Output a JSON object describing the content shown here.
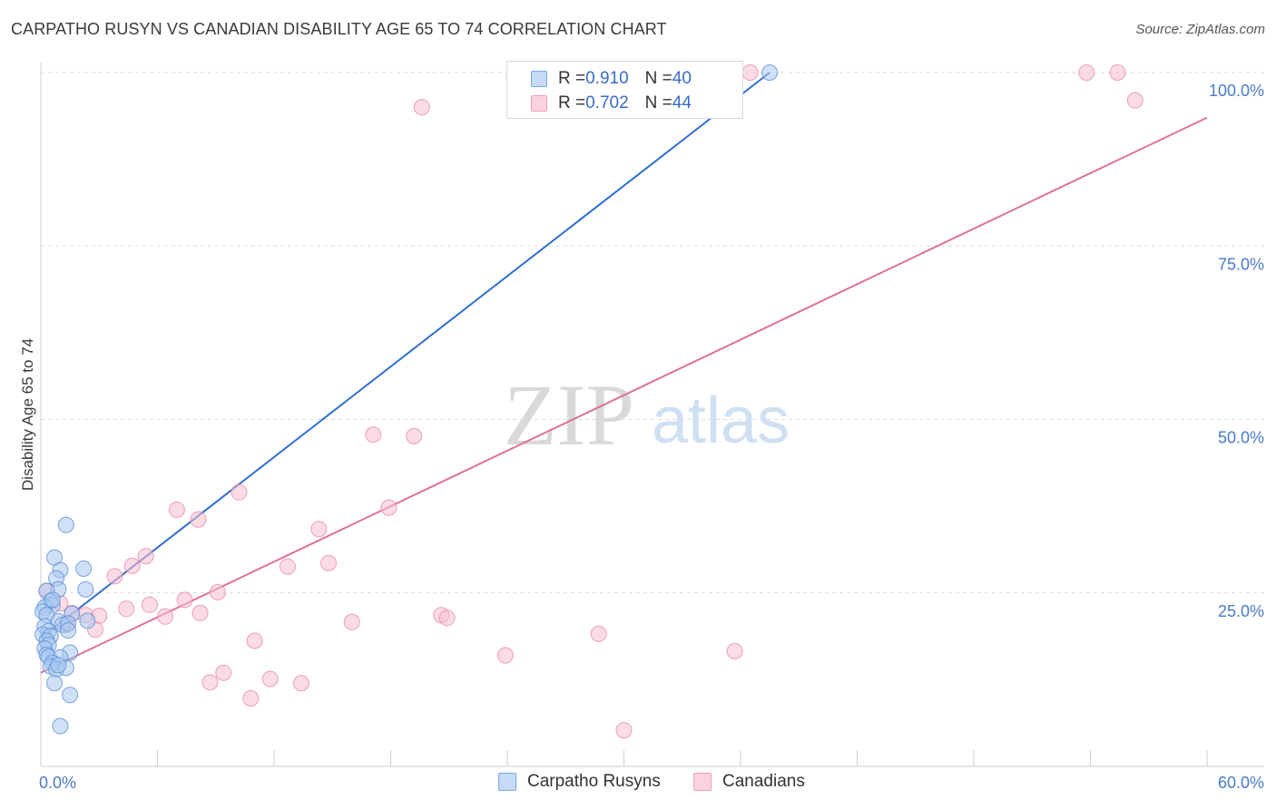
{
  "title": "CARPATHO RUSYN VS CANADIAN DISABILITY AGE 65 TO 74 CORRELATION CHART",
  "source": "Source: ZipAtlas.com",
  "watermark": {
    "zip": "ZIP",
    "atlas": "atlas"
  },
  "legend": {
    "rows": [
      {
        "r_label": "R = ",
        "r_value": "0.910",
        "n_label": "N = ",
        "n_value": "40"
      },
      {
        "r_label": "R = ",
        "r_value": "0.702",
        "n_label": "N = ",
        "n_value": "44"
      }
    ]
  },
  "colors": {
    "blue_fill": "#a9c8f0",
    "blue_stroke": "#5b8fd6",
    "blue_line": "#2f6fcf",
    "pink_fill": "#f7bfd0",
    "pink_stroke": "#e88aa8",
    "pink_line": "#e07098",
    "grid": "#dcdcdc",
    "axis_text": "#4a7ac7"
  },
  "chart_data": {
    "type": "scatter",
    "title": "CARPATHO RUSYN VS CANADIAN DISABILITY AGE 65 TO 74 CORRELATION CHART",
    "xlabel": "",
    "ylabel": "Disability Age 65 to 74",
    "xlim": [
      0,
      60
    ],
    "ylim": [
      0,
      105
    ],
    "x_tick_labels": [
      "0.0%",
      "60.0%"
    ],
    "y_ticks": [
      25,
      50,
      75,
      100
    ],
    "y_tick_labels": [
      "25.0%",
      "50.0%",
      "75.0%",
      "100.0%"
    ],
    "grid": true,
    "series": [
      {
        "name": "Carpatho Rusyns",
        "color": "#5b8fd6",
        "r": 0.91,
        "n": 40,
        "trend": {
          "x": [
            0,
            37.5
          ],
          "y": [
            18.5,
            100
          ]
        },
        "points": [
          [
            1.3,
            34.8
          ],
          [
            0.7,
            30.1
          ],
          [
            1.0,
            28.3
          ],
          [
            0.8,
            27.1
          ],
          [
            0.9,
            25.5
          ],
          [
            2.2,
            28.5
          ],
          [
            2.3,
            25.5
          ],
          [
            0.3,
            25.3
          ],
          [
            0.5,
            23.8
          ],
          [
            0.6,
            23.2
          ],
          [
            0.2,
            22.9
          ],
          [
            0.1,
            22.3
          ],
          [
            0.3,
            21.8
          ],
          [
            1.6,
            22.0
          ],
          [
            0.9,
            20.9
          ],
          [
            1.1,
            20.4
          ],
          [
            1.4,
            20.6
          ],
          [
            2.4,
            21.0
          ],
          [
            0.2,
            20.2
          ],
          [
            0.4,
            19.5
          ],
          [
            0.1,
            19.0
          ],
          [
            0.5,
            18.8
          ],
          [
            1.4,
            19.6
          ],
          [
            0.3,
            18.1
          ],
          [
            0.4,
            17.5
          ],
          [
            0.2,
            17.0
          ],
          [
            0.3,
            16.1
          ],
          [
            1.5,
            16.4
          ],
          [
            0.4,
            15.8
          ],
          [
            1.0,
            15.7
          ],
          [
            0.6,
            14.9
          ],
          [
            0.5,
            14.4
          ],
          [
            0.8,
            14.0
          ],
          [
            1.3,
            14.2
          ],
          [
            0.9,
            14.6
          ],
          [
            0.7,
            12.0
          ],
          [
            1.5,
            10.3
          ],
          [
            1.0,
            5.8
          ],
          [
            0.6,
            24.0
          ],
          [
            37.5,
            100.0
          ]
        ]
      },
      {
        "name": "Canadians",
        "color": "#e88aa8",
        "r": 0.702,
        "n": 44,
        "trend": {
          "x": [
            0,
            60
          ],
          "y": [
            13.5,
            93.5
          ]
        },
        "points": [
          [
            35.0,
            100.0
          ],
          [
            36.5,
            100.0
          ],
          [
            53.8,
            100.0
          ],
          [
            55.4,
            100.0
          ],
          [
            19.6,
            95.0
          ],
          [
            56.3,
            96.0
          ],
          [
            17.1,
            47.8
          ],
          [
            19.2,
            47.6
          ],
          [
            7.0,
            37.0
          ],
          [
            10.2,
            39.5
          ],
          [
            17.9,
            37.3
          ],
          [
            8.1,
            35.6
          ],
          [
            14.3,
            34.2
          ],
          [
            5.4,
            30.3
          ],
          [
            4.7,
            28.9
          ],
          [
            12.7,
            28.8
          ],
          [
            14.8,
            29.3
          ],
          [
            3.8,
            27.4
          ],
          [
            9.1,
            25.1
          ],
          [
            0.3,
            25.3
          ],
          [
            1.0,
            23.5
          ],
          [
            7.4,
            24.0
          ],
          [
            5.6,
            23.3
          ],
          [
            4.4,
            22.7
          ],
          [
            6.4,
            21.6
          ],
          [
            8.2,
            22.1
          ],
          [
            1.6,
            22.1
          ],
          [
            2.3,
            21.8
          ],
          [
            3.0,
            21.7
          ],
          [
            20.6,
            21.8
          ],
          [
            20.9,
            21.4
          ],
          [
            16.0,
            20.8
          ],
          [
            1.3,
            20.4
          ],
          [
            2.8,
            19.7
          ],
          [
            28.7,
            19.1
          ],
          [
            11.0,
            18.1
          ],
          [
            23.9,
            16.0
          ],
          [
            35.7,
            16.6
          ],
          [
            9.4,
            13.5
          ],
          [
            8.7,
            12.1
          ],
          [
            11.8,
            12.6
          ],
          [
            13.4,
            12.0
          ],
          [
            10.8,
            9.8
          ],
          [
            30.0,
            5.2
          ]
        ]
      }
    ]
  },
  "bottom_legend": [
    {
      "label": "Carpatho Rusyns"
    },
    {
      "label": "Canadians"
    }
  ]
}
